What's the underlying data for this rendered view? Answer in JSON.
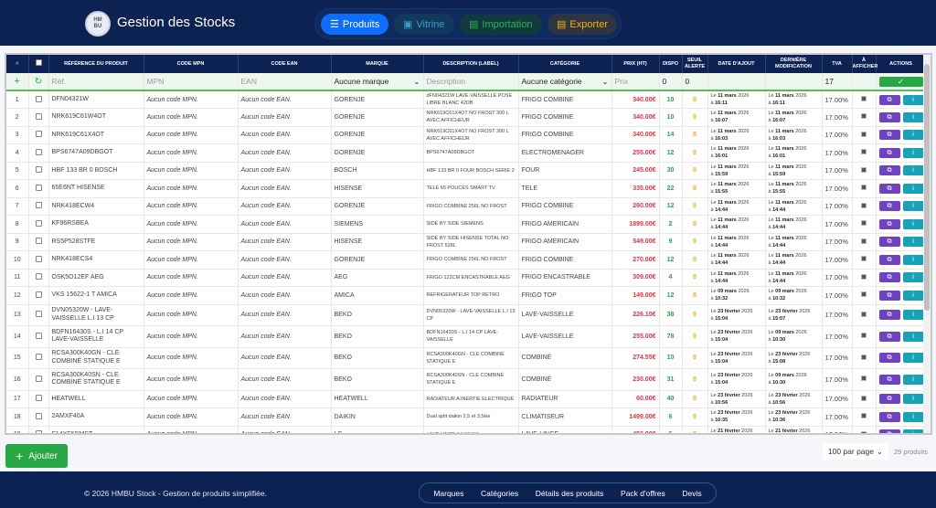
{
  "header": {
    "logo_text": "HMBU",
    "title": "Gestion des Stocks",
    "nav": [
      {
        "label": "Produits",
        "icon": "list-icon",
        "bg": "#0d6efd",
        "color": "#ffffff"
      },
      {
        "label": "Vitrine",
        "icon": "image-icon",
        "bg": "#12385e",
        "color": "#3aa0c8"
      },
      {
        "label": "Importation",
        "icon": "file-import-icon",
        "bg": "#123a3e",
        "color": "#2eb34f"
      },
      {
        "label": "Exporter",
        "icon": "file-export-icon",
        "bg": "#2e3440",
        "color": "#f5b400"
      }
    ]
  },
  "table": {
    "columns": [
      "#",
      "",
      "RÉFÉRENCE DU PRODUIT",
      "CODE MPN",
      "CODE EAN",
      "MARQUE",
      "DESCRIPTION (LABEL)",
      "CATÉGORIE",
      "PRIX (HT)",
      "DISPO",
      "SEUIL ALERTE",
      "DATE D'AJOUT",
      "DERNIÈRE MODIFICATION",
      "TVA",
      "À AFFICHER",
      "ACTIONS"
    ],
    "filter": {
      "ref_placeholder": "Réf.",
      "mpn_placeholder": "MPN",
      "ean_placeholder": "EAN",
      "brand": "Aucune marque",
      "desc_placeholder": "Description",
      "category": "Aucune catégorie",
      "price_placeholder": "Prix",
      "dispo": "0",
      "seuil": "0",
      "tva": "17",
      "confirm": "✓"
    },
    "rows": [
      {
        "n": "1",
        "ref": "DFN04321W",
        "mpn": "Aucun code MPN.",
        "ean": "Aucun code EAN.",
        "brand": "GORENJE",
        "desc": "dFN04321W LAVE VAISSELLE POSE LIBRE BLANC 42DB",
        "cat": "FRIGO COMBINE",
        "price": "340.00€",
        "dispo": "10",
        "seuil": "0",
        "added_day": "11 mars",
        "added_year": "2026",
        "added_time": "16:11",
        "mod_day": "11 mars",
        "mod_year": "2026",
        "mod_time": "16:11",
        "tva": "17.00%"
      },
      {
        "n": "2",
        "ref": "NRK619C61W4OT",
        "mpn": "Aucun code MPN.",
        "ean": "Aucun code EAN.",
        "brand": "GORENJE",
        "desc": "NRK619C61X4OT NO FROST 300 L AVEC AFFICHEUR",
        "cat": "FRIGO COMBINE",
        "price": "340.00€",
        "dispo": "10",
        "seuil": "0",
        "added_day": "11 mars",
        "added_year": "2026",
        "added_time": "16:07",
        "mod_day": "11 mars",
        "mod_year": "2026",
        "mod_time": "16:07",
        "tva": "17.00%"
      },
      {
        "n": "3",
        "ref": "NRK619C61X4OT",
        "mpn": "Aucun code MPN.",
        "ean": "Aucun code EAN.",
        "brand": "GORENJE",
        "desc": "NRK619C61X4OT NO FROST 300 L AVEC AFFICHEUR",
        "cat": "FRIGO COMBINE",
        "price": "340.00€",
        "dispo": "14",
        "seuil": "0",
        "added_day": "11 mars",
        "added_year": "2026",
        "added_time": "16:03",
        "mod_day": "11 mars",
        "mod_year": "2026",
        "mod_time": "16:03",
        "tva": "17.00%"
      },
      {
        "n": "4",
        "ref": "BPS6747A09DBGOT",
        "mpn": "Aucun code MPN.",
        "ean": "Aucun code EAN.",
        "brand": "GORENJE",
        "desc": "BPS6747A09DBGOT",
        "cat": "ELECTROMENAGER",
        "price": "255.00€",
        "dispo": "12",
        "seuil": "0",
        "added_day": "11 mars",
        "added_year": "2026",
        "added_time": "16:01",
        "mod_day": "11 mars",
        "mod_year": "2026",
        "mod_time": "16:01",
        "tva": "17.00%"
      },
      {
        "n": "5",
        "ref": "HBF 133 BR 0 BOSCH",
        "mpn": "Aucun code MPN.",
        "ean": "Aucun code EAN.",
        "brand": "BOSCH",
        "desc": "HBF 133 BR 0 FOUR BOSCH SERIE 2",
        "cat": "FOUR",
        "price": "245.00€",
        "dispo": "30",
        "seuil": "0",
        "added_day": "11 mars",
        "added_year": "2026",
        "added_time": "15:59",
        "mod_day": "11 mars",
        "mod_year": "2026",
        "mod_time": "15:59",
        "tva": "17.00%"
      },
      {
        "n": "6",
        "ref": "65E6NT HISENSE",
        "mpn": "Aucun code MPN.",
        "ean": "Aucun code EAN.",
        "brand": "HISENSE",
        "desc": "TELE 65 POUCES SMART TV",
        "cat": "TELE",
        "price": "335.00€",
        "dispo": "22",
        "seuil": "0",
        "added_day": "11 mars",
        "added_year": "2026",
        "added_time": "15:55",
        "mod_day": "11 mars",
        "mod_year": "2026",
        "mod_time": "15:55",
        "tva": "17.00%"
      },
      {
        "n": "7",
        "ref": "NRK418ECW4",
        "mpn": "Aucun code MPN.",
        "ean": "Aucun code EAN.",
        "brand": "GORENJE",
        "desc": "FRIGO COMBINE 256L NO FROST",
        "cat": "FRIGO COMBINE",
        "price": "260.00€",
        "dispo": "12",
        "seuil": "0",
        "added_day": "11 mars",
        "added_year": "2026",
        "added_time": "14:44",
        "mod_day": "11 mars",
        "mod_year": "2026",
        "mod_time": "14:44",
        "tva": "17.00%"
      },
      {
        "n": "8",
        "ref": "KF96RSBEA",
        "mpn": "Aucun code MPN.",
        "ean": "Aucun code EAN.",
        "brand": "SIEMENS",
        "desc": "SIDE BY SIDE SIEMENS",
        "cat": "FRIGO AMERICAIN",
        "price": "1899.00€",
        "dispo": "2",
        "seuil": "0",
        "added_day": "11 mars",
        "added_year": "2026",
        "added_time": "14:44",
        "mod_day": "11 mars",
        "mod_year": "2026",
        "mod_time": "14:44",
        "tva": "17.00%"
      },
      {
        "n": "9",
        "ref": "RS5P528STFE",
        "mpn": "Aucun code MPN.",
        "ean": "Aucun code EAN.",
        "brand": "HISENSE",
        "desc": "SIDE BY SIDE HISENSE TOTAL NO FROST 528L",
        "cat": "FRIGO AMERICAIN",
        "price": "549.00€",
        "dispo": "9",
        "seuil": "0",
        "added_day": "11 mars",
        "added_year": "2026",
        "added_time": "14:44",
        "mod_day": "11 mars",
        "mod_year": "2026",
        "mod_time": "14:44",
        "tva": "17.00%"
      },
      {
        "n": "10",
        "ref": "NRK418ECS4",
        "mpn": "Aucun code MPN.",
        "ean": "Aucun code EAN.",
        "brand": "GORENJE",
        "desc": "FRIGO COMBINE 256L NO FROST",
        "cat": "FRIGO COMBINE",
        "price": "270.00€",
        "dispo": "12",
        "seuil": "0",
        "added_day": "11 mars",
        "added_year": "2026",
        "added_time": "14:44",
        "mod_day": "11 mars",
        "mod_year": "2026",
        "mod_time": "14:44",
        "tva": "17.00%"
      },
      {
        "n": "11",
        "ref": "OSK5O12EF AEG",
        "mpn": "Aucun code MPN.",
        "ean": "Aucun code EAN.",
        "brand": "AEG",
        "desc": "FRIGO 122CM ENCASTRABLE AEG",
        "cat": "FRIGO ENCASTRABLE",
        "price": "309.00€",
        "dispo": "4",
        "seuil": "0",
        "added_day": "11 mars",
        "added_year": "2026",
        "added_time": "14:44",
        "mod_day": "11 mars",
        "mod_year": "2026",
        "mod_time": "14:44",
        "tva": "17.00%"
      },
      {
        "n": "12",
        "ref": "VKS 15622-1 T AMICA",
        "mpn": "Aucun code MPN.",
        "ean": "Aucun code EAN.",
        "brand": "AMICA",
        "desc": "REFRIGERATEUR TOP RETRO",
        "cat": "FRIGO TOP",
        "price": "149.00€",
        "dispo": "12",
        "seuil": "0",
        "added_day": "09 mars",
        "added_year": "2026",
        "added_time": "10:32",
        "mod_day": "09 mars",
        "mod_year": "2026",
        "mod_time": "10:32",
        "tva": "17.00%"
      },
      {
        "n": "13",
        "ref": "DVN05320W - LAVE-VAISSELLE L.I 13 CP",
        "mpn": "Aucun code MPN.",
        "ean": "Aucun code EAN.",
        "brand": "BEKO",
        "desc": "DVN05320W - LAVE-VAISSELLE L.I 13 CP",
        "cat": "LAVE-VAISSELLE",
        "price": "226.10€",
        "dispo": "38",
        "seuil": "0",
        "added_day": "23 février",
        "added_year": "2026",
        "added_time": "15:04",
        "mod_day": "23 février",
        "mod_year": "2026",
        "mod_time": "15:07",
        "tva": "17.00%",
        "tall": true
      },
      {
        "n": "14",
        "ref": "BDFN16430S - L.I 14 CP LAVE-VAISSELLE",
        "mpn": "Aucun code MPN.",
        "ean": "Aucun code EAN.",
        "brand": "BEKO",
        "desc": "BDFN16430S - L.I 14 CP LAVE-VAISSELLE",
        "cat": "LAVE-VAISSELLE",
        "price": "255.00€",
        "dispo": "78",
        "seuil": "0",
        "added_day": "23 février",
        "added_year": "2026",
        "added_time": "15:04",
        "mod_day": "09 mars",
        "mod_year": "2026",
        "mod_time": "10:30",
        "tva": "17.00%",
        "tall": true
      },
      {
        "n": "15",
        "ref": "RCSA300K40GN - CLE COMBINÉ STATIQUE E",
        "mpn": "Aucun code MPN.",
        "ean": "Aucun code EAN.",
        "brand": "BEKO",
        "desc": "RCSA300K40GN - CLE COMBINÉ STATIQUE E",
        "cat": "COMBINÉ",
        "price": "274.55€",
        "dispo": "10",
        "seuil": "0",
        "added_day": "23 février",
        "added_year": "2026",
        "added_time": "15:04",
        "mod_day": "23 février",
        "mod_year": "2026",
        "mod_time": "15:08",
        "tva": "17.00%",
        "tall": true
      },
      {
        "n": "16",
        "ref": "RCSA300K40SN - CLE COMBINÉ STATIQUE E",
        "mpn": "Aucun code MPN.",
        "ean": "Aucun code EAN.",
        "brand": "BEKO",
        "desc": "RCSA300K40SN - CLE COMBINÉ STATIQUE E",
        "cat": "COMBINÉ",
        "price": "230.00€",
        "dispo": "31",
        "seuil": "0",
        "added_day": "23 février",
        "added_year": "2026",
        "added_time": "15:04",
        "mod_day": "09 mars",
        "mod_year": "2026",
        "mod_time": "10:30",
        "tva": "17.00%",
        "tall": true
      },
      {
        "n": "17",
        "ref": "HEATWELL",
        "mpn": "Aucun code MPN.",
        "ean": "Aucun code EAN.",
        "brand": "HEATWELL",
        "desc": "RADIATEUR A INERTIE ELECTRIQUE",
        "cat": "RADIATEUR",
        "price": "60.00€",
        "dispo": "40",
        "seuil": "0",
        "added_day": "23 février",
        "added_year": "2026",
        "added_time": "10:56",
        "mod_day": "23 février",
        "mod_year": "2026",
        "mod_time": "10:56",
        "tva": "17.00%"
      },
      {
        "n": "18",
        "ref": "2AMXF40A",
        "mpn": "Aucun code MPN.",
        "ean": "Aucun code EAN.",
        "brand": "DAIKIN",
        "desc": "Dual split daikin 2,5 et 3,5kw",
        "cat": "CLIMATISEUR",
        "price": "1499.00€",
        "dispo": "6",
        "seuil": "0",
        "added_day": "23 février",
        "added_year": "2026",
        "added_time": "10:35",
        "mod_day": "23 février",
        "mod_year": "2026",
        "mod_time": "10:36",
        "tva": "17.00%"
      },
      {
        "n": "19",
        "ref": "F14XF6RMST",
        "mpn": "Aucun code MPN.",
        "ean": "Aucun code EAN.",
        "brand": "LG",
        "desc": "LAVE-LINGE 14 KILOS",
        "cat": "LAVE-LINGE",
        "price": "450.00€",
        "dispo": "6",
        "seuil": "0",
        "added_day": "21 février",
        "added_year": "2026",
        "added_time": "",
        "mod_day": "21 février",
        "mod_year": "2026",
        "mod_time": "",
        "tva": "17.00%"
      }
    ]
  },
  "bottom": {
    "add_label": "Ajouter",
    "per_page": "100 par page",
    "count": "29 produits"
  },
  "footer": {
    "copyright": "© 2026 HMBU Stock  -  Gestion de produits simplifiée.",
    "links": [
      "Marques",
      "Catégories",
      "Détails des produits",
      "Pack d'offres",
      "Devis"
    ]
  }
}
